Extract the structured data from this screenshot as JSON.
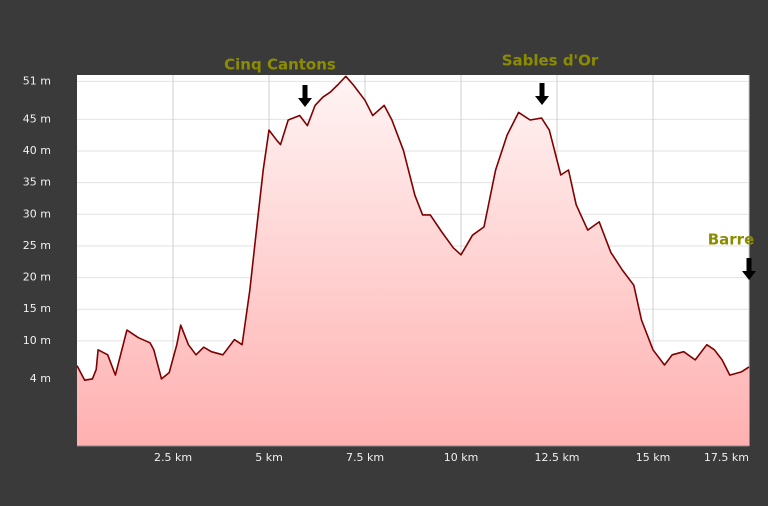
{
  "chart_data": {
    "type": "area",
    "annotations": [
      "Cinq Cantons",
      "Sables d'Or",
      "Barre"
    ],
    "x": [
      0,
      0.2,
      0.4,
      0.5,
      0.55,
      0.8,
      1.0,
      1.3,
      1.6,
      1.9,
      2.0,
      2.2,
      2.4,
      2.6,
      2.7,
      2.9,
      3.1,
      3.3,
      3.5,
      3.8,
      4.1,
      4.3,
      4.5,
      4.7,
      4.85,
      5.0,
      5.2,
      5.3,
      5.5,
      5.8,
      6.0,
      6.2,
      6.4,
      6.6,
      6.8,
      7.0,
      7.2,
      7.5,
      7.7,
      8.0,
      8.2,
      8.5,
      8.8,
      9.0,
      9.2,
      9.5,
      9.8,
      10.0,
      10.3,
      10.6,
      10.9,
      11.2,
      11.5,
      11.8,
      12.1,
      12.3,
      12.6,
      12.8,
      13.0,
      13.3,
      13.6,
      13.9,
      14.2,
      14.5,
      14.7,
      15.0,
      15.3,
      15.5,
      15.8,
      16.1,
      16.4,
      16.6,
      16.8,
      17.0,
      17.3,
      17.5
    ],
    "values": [
      6.1,
      3.8,
      4,
      5.5,
      8.6,
      7.8,
      4.6,
      11.7,
      10.5,
      9.7,
      8.6,
      4,
      5,
      9.4,
      12.5,
      9.4,
      7.8,
      9,
      8.3,
      7.8,
      10.2,
      9.4,
      18,
      29,
      37,
      43.3,
      41.7,
      41,
      44.9,
      45.6,
      44,
      47.2,
      48.5,
      49.3,
      50.5,
      51.8,
      50.4,
      48,
      45.6,
      47.2,
      44.9,
      40.1,
      33,
      29.9,
      29.9,
      27.2,
      24.7,
      23.6,
      26.7,
      28,
      37,
      42.5,
      46.1,
      44.9,
      45.2,
      43.3,
      36.2,
      37,
      31.5,
      27.5,
      28.8,
      24,
      21.2,
      18.8,
      13.3,
      8.6,
      6.2,
      7.8,
      8.3,
      7,
      9.4,
      8.6,
      7,
      4.6,
      5.1,
      5.9
    ],
    "color": "#800000",
    "xlim": [
      0,
      17.5
    ],
    "xticks": [
      {
        "value": 2.5,
        "label": "2.5 km"
      },
      {
        "value": 5,
        "label": "5 km"
      },
      {
        "value": 7.5,
        "label": "7.5 km"
      },
      {
        "value": 10,
        "label": "10 km"
      },
      {
        "value": 12.5,
        "label": "12.5 km"
      },
      {
        "value": 15,
        "label": "15 km"
      },
      {
        "value": 17.5,
        "label": "17.5 km"
      }
    ],
    "ylim": [
      -6.6,
      52
    ],
    "yticks": [
      {
        "value": 4,
        "label": "4 m"
      },
      {
        "value": 10,
        "label": "10 m"
      },
      {
        "value": 15,
        "label": "15 m"
      },
      {
        "value": 20,
        "label": "20 m"
      },
      {
        "value": 25,
        "label": "25 m"
      },
      {
        "value": 30,
        "label": "30 m"
      },
      {
        "value": 35,
        "label": "35 m"
      },
      {
        "value": 40,
        "label": "40 m"
      },
      {
        "value": 45,
        "label": "45 m"
      },
      {
        "value": 51,
        "label": "51 m"
      }
    ],
    "grid": true
  }
}
